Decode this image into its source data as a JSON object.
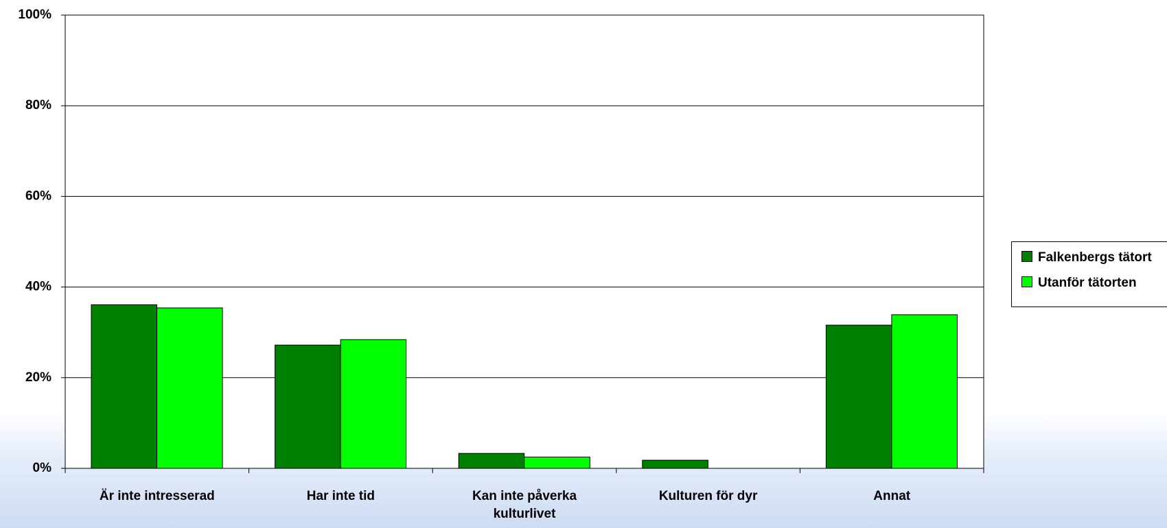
{
  "chart_data": {
    "type": "bar",
    "categories": [
      "Är inte intresserad",
      "Har inte tid",
      "Kan inte påverka kulturlivet",
      "Kulturen för dyr",
      "Annat"
    ],
    "series": [
      {
        "name": "Falkenbergs tätort",
        "color": "#008000",
        "values": [
          36.1,
          27.2,
          3.3,
          1.8,
          31.6
        ]
      },
      {
        "name": "Utanför tätorten",
        "color": "#00ff00",
        "values": [
          35.4,
          28.4,
          2.5,
          0,
          33.9
        ]
      }
    ],
    "ylim": [
      0,
      100
    ],
    "yticks": [
      {
        "value": 0,
        "label": "0%"
      },
      {
        "value": 20,
        "label": "20%"
      },
      {
        "value": 40,
        "label": "40%"
      },
      {
        "value": 60,
        "label": "60%"
      },
      {
        "value": 80,
        "label": "80%"
      },
      {
        "value": 100,
        "label": "100%"
      }
    ],
    "grid": true
  }
}
